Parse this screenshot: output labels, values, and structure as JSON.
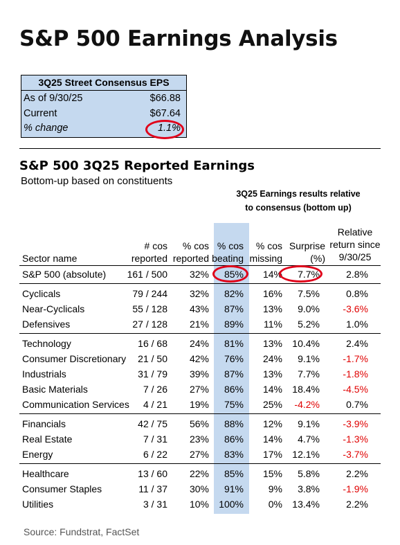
{
  "title": "S&P 500 Earnings Analysis",
  "consensus": {
    "header": "3Q25 Street Consensus EPS",
    "rows": [
      {
        "label": "As of 9/30/25",
        "value": "$66.88"
      },
      {
        "label": "Current",
        "value": "$67.64"
      },
      {
        "label": "% change",
        "value": "1.1%"
      }
    ]
  },
  "table": {
    "title": "S&P 500 3Q25 Reported Earnings",
    "subtitle": "Bottom-up based on constituents",
    "group_note_line1": "3Q25 Earnings results relative",
    "group_note_line2": "to consensus (bottom up)",
    "headers": {
      "sector": "Sector name",
      "reported_1": "# cos",
      "reported_2": "reported",
      "pct_reported_1": "% cos",
      "pct_reported_2": "reported",
      "beating_1": "% cos",
      "beating_2": "beating",
      "missing_1": "% cos",
      "missing_2": "missing",
      "surprise_1": "Surprise",
      "surprise_2": "(%)",
      "relret_1": "Relative",
      "relret_2": "return since",
      "relret_3": "9/30/25"
    },
    "rows": [
      {
        "name": "S&P 500 (absolute)",
        "reported": "161 / 500",
        "pct_reported": "32%",
        "beating": "85%",
        "missing": "14%",
        "surprise": "7.7%",
        "relret": "2.8%"
      },
      {
        "name": "Cyclicals",
        "reported": "79 / 244",
        "pct_reported": "32%",
        "beating": "82%",
        "missing": "16%",
        "surprise": "7.5%",
        "relret": "0.8%"
      },
      {
        "name": "Near-Cyclicals",
        "reported": "55 / 128",
        "pct_reported": "43%",
        "beating": "87%",
        "missing": "13%",
        "surprise": "9.0%",
        "relret": "-3.6%"
      },
      {
        "name": "Defensives",
        "reported": "27 / 128",
        "pct_reported": "21%",
        "beating": "89%",
        "missing": "11%",
        "surprise": "5.2%",
        "relret": "1.0%"
      },
      {
        "name": "Technology",
        "reported": "16 / 68",
        "pct_reported": "24%",
        "beating": "81%",
        "missing": "13%",
        "surprise": "10.4%",
        "relret": "2.4%"
      },
      {
        "name": "Consumer Discretionary",
        "reported": "21 / 50",
        "pct_reported": "42%",
        "beating": "76%",
        "missing": "24%",
        "surprise": "9.1%",
        "relret": "-1.7%"
      },
      {
        "name": "Industrials",
        "reported": "31 / 79",
        "pct_reported": "39%",
        "beating": "87%",
        "missing": "13%",
        "surprise": "7.7%",
        "relret": "-1.8%"
      },
      {
        "name": "Basic Materials",
        "reported": "7 / 26",
        "pct_reported": "27%",
        "beating": "86%",
        "missing": "14%",
        "surprise": "18.4%",
        "relret": "-4.5%"
      },
      {
        "name": "Communication Services",
        "reported": "4 / 21",
        "pct_reported": "19%",
        "beating": "75%",
        "missing": "25%",
        "surprise": "-4.2%",
        "relret": "0.7%"
      },
      {
        "name": "Financials",
        "reported": "42 / 75",
        "pct_reported": "56%",
        "beating": "88%",
        "missing": "12%",
        "surprise": "9.1%",
        "relret": "-3.9%"
      },
      {
        "name": "Real Estate",
        "reported": "7 / 31",
        "pct_reported": "23%",
        "beating": "86%",
        "missing": "14%",
        "surprise": "4.7%",
        "relret": "-1.3%"
      },
      {
        "name": "Energy",
        "reported": "6 / 22",
        "pct_reported": "27%",
        "beating": "83%",
        "missing": "17%",
        "surprise": "12.1%",
        "relret": "-3.7%"
      },
      {
        "name": "Healthcare",
        "reported": "13 / 60",
        "pct_reported": "22%",
        "beating": "85%",
        "missing": "15%",
        "surprise": "5.8%",
        "relret": "2.2%"
      },
      {
        "name": "Consumer Staples",
        "reported": "11 / 37",
        "pct_reported": "30%",
        "beating": "91%",
        "missing": "9%",
        "surprise": "3.8%",
        "relret": "-1.9%"
      },
      {
        "name": "Utilities",
        "reported": "3 / 31",
        "pct_reported": "10%",
        "beating": "100%",
        "missing": "0%",
        "surprise": "13.4%",
        "relret": "2.2%"
      }
    ]
  },
  "source": "Source: Fundstrat, FactSet",
  "colors": {
    "highlight": "#c5d9ef",
    "negative": "#e00000",
    "circle": "#e0001a"
  }
}
